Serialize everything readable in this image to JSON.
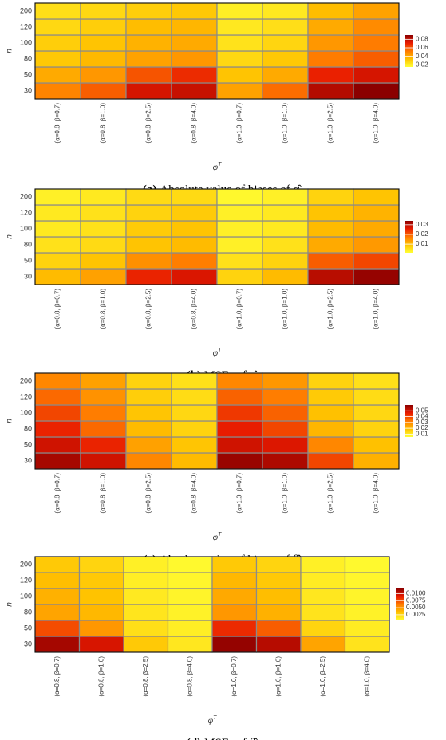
{
  "chart_data": [
    {
      "type": "heatmap",
      "caption_label": "(a)",
      "caption": "Absolute value of biases of α̂.",
      "xlabel": "φ",
      "xlabel_sup": "T",
      "ylabel": "n",
      "x_categories": [
        "(α=0.8, β=0.7)",
        "(α=0.8, β=1.0)",
        "(α=0.8, β=2.5)",
        "(α=0.8, β=4.0)",
        "(α=1.0, β=0.7)",
        "(α=1.0, β=1.0)",
        "(α=1.0, β=2.5)",
        "(α=1.0, β=4.0)"
      ],
      "y_categories": [
        "30",
        "50",
        "80",
        "100",
        "120",
        "200"
      ],
      "values": [
        [
          0.05,
          0.058,
          0.075,
          0.078,
          0.042,
          0.055,
          0.082,
          0.09
        ],
        [
          0.04,
          0.045,
          0.06,
          0.068,
          0.033,
          0.04,
          0.07,
          0.075
        ],
        [
          0.032,
          0.036,
          0.042,
          0.045,
          0.027,
          0.032,
          0.052,
          0.058
        ],
        [
          0.03,
          0.033,
          0.038,
          0.04,
          0.024,
          0.028,
          0.045,
          0.052
        ],
        [
          0.027,
          0.03,
          0.035,
          0.037,
          0.022,
          0.025,
          0.04,
          0.048
        ],
        [
          0.025,
          0.027,
          0.03,
          0.032,
          0.02,
          0.022,
          0.035,
          0.042
        ]
      ],
      "clim": [
        0.015,
        0.09
      ],
      "colorbar_ticks": [
        0.02,
        0.04,
        0.06,
        0.08
      ],
      "colors": [
        "#ffff33",
        "#ffc200",
        "#ff7a00",
        "#e81a00",
        "#8b0000"
      ]
    },
    {
      "type": "heatmap",
      "caption_label": "(b)",
      "caption": "MSEs of α̂.",
      "xlabel": "φ",
      "xlabel_sup": "T",
      "ylabel": "n",
      "x_categories": [
        "(α=0.8, β=0.7)",
        "(α=0.8, β=1.0)",
        "(α=0.8, β=2.5)",
        "(α=0.8, β=4.0)",
        "(α=1.0, β=0.7)",
        "(α=1.0, β=1.0)",
        "(α=1.0, β=2.5)",
        "(α=1.0, β=4.0)"
      ],
      "y_categories": [
        "30",
        "50",
        "80",
        "100",
        "120",
        "200"
      ],
      "values": [
        [
          0.01,
          0.013,
          0.025,
          0.027,
          0.007,
          0.01,
          0.03,
          0.033
        ],
        [
          0.007,
          0.009,
          0.015,
          0.017,
          0.005,
          0.007,
          0.02,
          0.022
        ],
        [
          0.005,
          0.006,
          0.009,
          0.01,
          0.003,
          0.005,
          0.012,
          0.014
        ],
        [
          0.004,
          0.005,
          0.008,
          0.009,
          0.003,
          0.004,
          0.01,
          0.012
        ],
        [
          0.004,
          0.005,
          0.007,
          0.008,
          0.003,
          0.004,
          0.009,
          0.011
        ],
        [
          0.003,
          0.004,
          0.006,
          0.006,
          0.002,
          0.003,
          0.007,
          0.009
        ]
      ],
      "clim": [
        0.001,
        0.034
      ],
      "colorbar_ticks": [
        0.01,
        0.02,
        0.03
      ],
      "colors": [
        "#ffff33",
        "#ffc200",
        "#ff7a00",
        "#e81a00",
        "#8b0000"
      ]
    },
    {
      "type": "heatmap",
      "caption_label": "(c)",
      "caption": "Absolute value of biases of β̂.",
      "xlabel": "φ",
      "xlabel_sup": "T",
      "ylabel": "n",
      "x_categories": [
        "(α=0.8, β=0.7)",
        "(α=0.8, β=1.0)",
        "(α=0.8, β=2.5)",
        "(α=0.8, β=4.0)",
        "(α=1.0, β=0.7)",
        "(α=1.0, β=1.0)",
        "(α=1.0, β=2.5)",
        "(α=1.0, β=4.0)"
      ],
      "y_categories": [
        "30",
        "50",
        "80",
        "100",
        "120",
        "200"
      ],
      "values": [
        [
          0.056,
          0.05,
          0.03,
          0.02,
          0.058,
          0.055,
          0.04,
          0.022
        ],
        [
          0.05,
          0.045,
          0.025,
          0.018,
          0.05,
          0.048,
          0.03,
          0.019
        ],
        [
          0.045,
          0.035,
          0.02,
          0.015,
          0.046,
          0.04,
          0.021,
          0.015
        ],
        [
          0.04,
          0.032,
          0.018,
          0.014,
          0.042,
          0.036,
          0.019,
          0.014
        ],
        [
          0.035,
          0.028,
          0.016,
          0.013,
          0.036,
          0.032,
          0.017,
          0.013
        ],
        [
          0.03,
          0.025,
          0.015,
          0.012,
          0.03,
          0.027,
          0.015,
          0.012
        ]
      ],
      "clim": [
        0.005,
        0.06
      ],
      "colorbar_ticks": [
        0.01,
        0.02,
        0.03,
        0.04,
        0.05
      ],
      "colors": [
        "#ffff33",
        "#ffc200",
        "#ff7a00",
        "#e81a00",
        "#8b0000"
      ]
    },
    {
      "type": "heatmap",
      "caption_label": "(d)",
      "caption": "MSEs of β̂.",
      "xlabel": "φ",
      "xlabel_sup": "T",
      "ylabel": "n",
      "x_categories": [
        "(α=0.8, β=0.7)",
        "(α=0.8, β=1.0)",
        "(α=0.8, β=2.5)",
        "(α=0.8, β=4.0)",
        "(α=1.0, β=0.7)",
        "(α=1.0, β=1.0)",
        "(α=1.0, β=2.5)",
        "(α=1.0, β=4.0)"
      ],
      "y_categories": [
        "30",
        "50",
        "80",
        "100",
        "120",
        "200"
      ],
      "values": [
        [
          0.011,
          0.0095,
          0.003,
          0.0016,
          0.0115,
          0.0105,
          0.0045,
          0.0018
        ],
        [
          0.0075,
          0.005,
          0.002,
          0.0013,
          0.0085,
          0.007,
          0.0025,
          0.0014
        ],
        [
          0.0045,
          0.0037,
          0.0017,
          0.0011,
          0.005,
          0.004,
          0.0018,
          0.0011
        ],
        [
          0.004,
          0.0033,
          0.0015,
          0.001,
          0.0043,
          0.0035,
          0.0016,
          0.001
        ],
        [
          0.0035,
          0.003,
          0.0013,
          0.0009,
          0.0037,
          0.003,
          0.0014,
          0.0009
        ],
        [
          0.003,
          0.0025,
          0.0012,
          0.0008,
          0.003,
          0.0025,
          0.0012,
          0.0008
        ]
      ],
      "clim": [
        0.0005,
        0.0118
      ],
      "colorbar_ticks": [
        0.0025,
        {
          "value": 0.005,
          "label": "0.0050"
        },
        0.0075,
        {
          "value": 0.01,
          "label": "0.0100"
        }
      ],
      "colors": [
        "#ffff33",
        "#ffc200",
        "#ff7a00",
        "#e81a00",
        "#8b0000"
      ]
    }
  ]
}
